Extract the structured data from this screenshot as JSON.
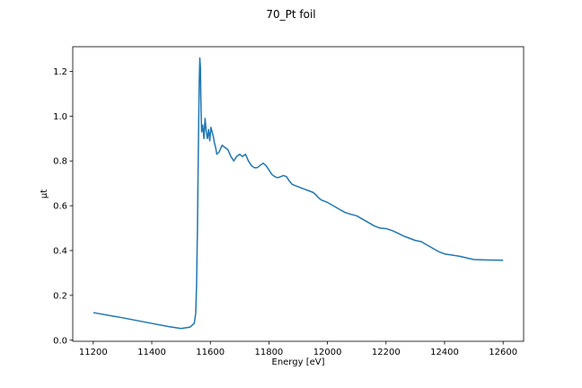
{
  "chart_data": {
    "type": "line",
    "title": "70_Pt foil",
    "xlabel": "Energy [eV]",
    "ylabel": "μt",
    "xlim": [
      11130,
      12670
    ],
    "ylim": [
      -0.005,
      1.31
    ],
    "xticks": [
      11200,
      11400,
      11600,
      11800,
      12000,
      12200,
      12400,
      12600
    ],
    "yticks": [
      0.0,
      0.2,
      0.4,
      0.6,
      0.8,
      1.0,
      1.2
    ],
    "xtick_labels": [
      "11200",
      "11400",
      "11600",
      "11800",
      "12000",
      "12200",
      "12400",
      "12600"
    ],
    "ytick_labels": [
      "0.0",
      "0.2",
      "0.4",
      "0.6",
      "0.8",
      "1.0",
      "1.2"
    ],
    "grid": false,
    "series": [
      {
        "color": "#1f77b4",
        "x": [
          11200,
          11300,
          11400,
          11460,
          11500,
          11530,
          11545,
          11550,
          11553,
          11556,
          11558,
          11560,
          11562,
          11564,
          11566,
          11568,
          11570,
          11574,
          11578,
          11582,
          11586,
          11590,
          11594,
          11598,
          11602,
          11606,
          11610,
          11614,
          11618,
          11622,
          11630,
          11640,
          11650,
          11660,
          11670,
          11680,
          11690,
          11700,
          11710,
          11720,
          11730,
          11740,
          11750,
          11760,
          11770,
          11780,
          11790,
          11800,
          11810,
          11820,
          11830,
          11840,
          11850,
          11860,
          11870,
          11880,
          11890,
          11900,
          11910,
          11920,
          11930,
          11940,
          11950,
          11960,
          11970,
          11980,
          11990,
          12000,
          12020,
          12040,
          12060,
          12080,
          12100,
          12120,
          12140,
          12160,
          12180,
          12200,
          12220,
          12240,
          12260,
          12280,
          12300,
          12320,
          12340,
          12360,
          12380,
          12400,
          12450,
          12500,
          12550,
          12600
        ],
        "y": [
          0.123,
          0.1,
          0.075,
          0.06,
          0.052,
          0.058,
          0.075,
          0.12,
          0.25,
          0.5,
          0.75,
          0.95,
          1.15,
          1.26,
          1.22,
          1.05,
          0.93,
          0.96,
          0.9,
          0.99,
          0.93,
          0.9,
          0.94,
          0.89,
          0.95,
          0.93,
          0.91,
          0.88,
          0.86,
          0.83,
          0.84,
          0.87,
          0.86,
          0.85,
          0.82,
          0.8,
          0.82,
          0.83,
          0.82,
          0.83,
          0.8,
          0.78,
          0.77,
          0.77,
          0.78,
          0.79,
          0.78,
          0.76,
          0.74,
          0.73,
          0.725,
          0.73,
          0.735,
          0.73,
          0.71,
          0.695,
          0.69,
          0.685,
          0.68,
          0.675,
          0.67,
          0.665,
          0.66,
          0.65,
          0.635,
          0.625,
          0.62,
          0.615,
          0.6,
          0.585,
          0.57,
          0.562,
          0.555,
          0.54,
          0.525,
          0.51,
          0.5,
          0.498,
          0.49,
          0.478,
          0.465,
          0.455,
          0.445,
          0.44,
          0.425,
          0.41,
          0.395,
          0.385,
          0.375,
          0.36,
          0.358,
          0.357
        ]
      }
    ]
  }
}
